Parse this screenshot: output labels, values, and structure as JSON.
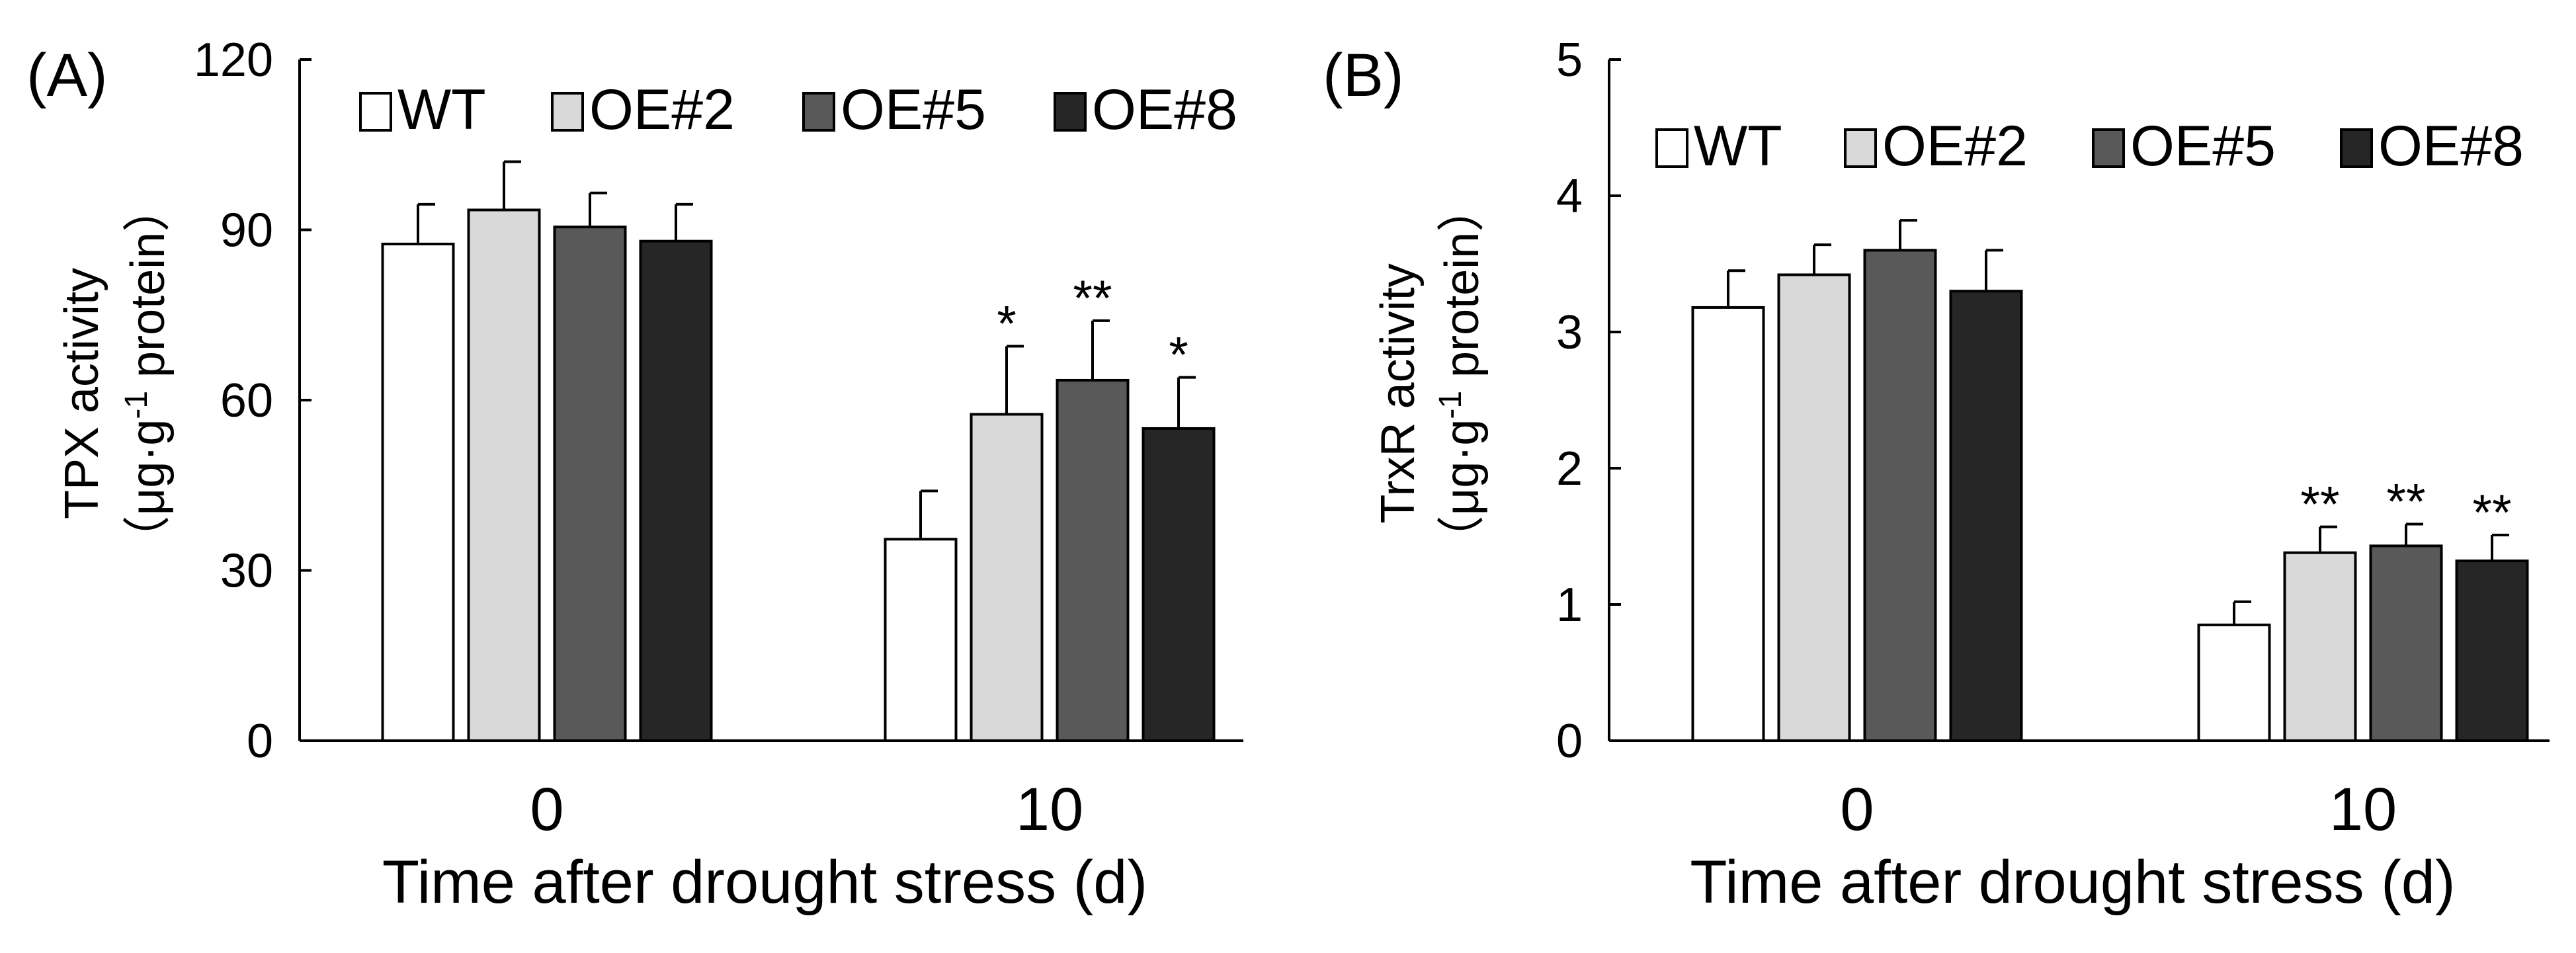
{
  "chart_data": [
    {
      "type": "bar",
      "panel_label": "(A)",
      "title": "",
      "ylabel_line1": "TPX activity",
      "ylabel_line2_pre": "（μg·g",
      "ylabel_line2_sup": "-1",
      "ylabel_line2_post": " protein）",
      "xlabel": "Time after drought stress (d)",
      "categories": [
        "0",
        "10"
      ],
      "ylim": [
        0,
        120
      ],
      "yticks": [
        "0",
        "30",
        "60",
        "90",
        "120"
      ],
      "legend_position": "top",
      "series": [
        {
          "name": "WT",
          "color": "#ffffff",
          "values": [
            87.5,
            35.5
          ],
          "errors": [
            7,
            8.5
          ],
          "annotations": [
            "",
            ""
          ]
        },
        {
          "name": "OE#2",
          "color": "#d9d9d9",
          "values": [
            93.5,
            57.5
          ],
          "errors": [
            8.5,
            12
          ],
          "annotations": [
            "",
            "*"
          ]
        },
        {
          "name": "OE#5",
          "color": "#595959",
          "values": [
            90.5,
            63.5
          ],
          "errors": [
            6,
            10.5
          ],
          "annotations": [
            "",
            "**"
          ]
        },
        {
          "name": "OE#8",
          "color": "#262626",
          "values": [
            88,
            55
          ],
          "errors": [
            6.5,
            9
          ],
          "annotations": [
            "",
            "*"
          ]
        }
      ]
    },
    {
      "type": "bar",
      "panel_label": "(B)",
      "title": "",
      "ylabel_line1": "TrxR activity",
      "ylabel_line2_pre": "（μg·g",
      "ylabel_line2_sup": "-1",
      "ylabel_line2_post": " protein）",
      "xlabel": "Time after drought stress (d)",
      "categories": [
        "0",
        "10"
      ],
      "ylim": [
        0,
        5
      ],
      "yticks": [
        "0",
        "1",
        "2",
        "3",
        "4",
        "5"
      ],
      "legend_position": "top",
      "series": [
        {
          "name": "WT",
          "color": "#ffffff",
          "values": [
            3.18,
            0.85
          ],
          "errors": [
            0.27,
            0.17
          ],
          "annotations": [
            "",
            ""
          ]
        },
        {
          "name": "OE#2",
          "color": "#d9d9d9",
          "values": [
            3.42,
            1.38
          ],
          "errors": [
            0.22,
            0.19
          ],
          "annotations": [
            "",
            "**"
          ]
        },
        {
          "name": "OE#5",
          "color": "#595959",
          "values": [
            3.6,
            1.43
          ],
          "errors": [
            0.22,
            0.16
          ],
          "annotations": [
            "",
            "**"
          ]
        },
        {
          "name": "OE#8",
          "color": "#262626",
          "values": [
            3.3,
            1.32
          ],
          "errors": [
            0.3,
            0.19
          ],
          "annotations": [
            "",
            "**"
          ]
        }
      ]
    }
  ]
}
